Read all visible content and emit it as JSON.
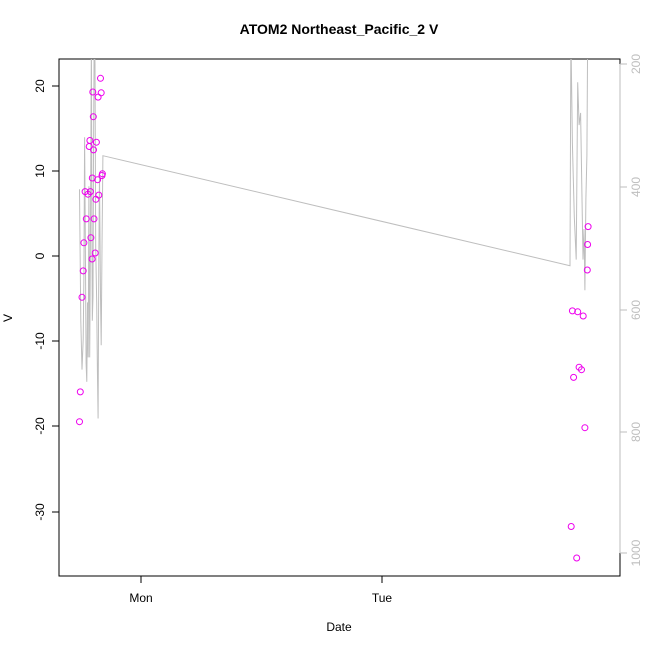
{
  "chart_data": {
    "type": "scatter",
    "title": "ATOM2 Northeast_Pacific_2 V",
    "xlabel": "Date",
    "ylabel": "V",
    "x_ticks": [
      "Mon",
      "Tue"
    ],
    "y_ticks": [
      "20",
      "10",
      "0",
      "-10",
      "-20",
      "-30"
    ],
    "y_right_ticks": [
      "200",
      "400",
      "600",
      "800",
      "1000"
    ],
    "ylim": [
      -37,
      23
    ],
    "y_right_lim": [
      1005,
      195
    ],
    "right_axis_reversed": true,
    "points_color": "#ee00ee",
    "line_color": "#bebebe",
    "axis_color_right": "#bebebe",
    "scatter_points": [
      {
        "x": -0.255,
        "y": -19.4
      },
      {
        "x": -0.252,
        "y": -15.9
      },
      {
        "x": -0.245,
        "y": -4.8
      },
      {
        "x": -0.24,
        "y": -1.7
      },
      {
        "x": -0.237,
        "y": 1.6
      },
      {
        "x": -0.232,
        "y": 7.6
      },
      {
        "x": -0.227,
        "y": 4.4
      },
      {
        "x": -0.22,
        "y": 7.3
      },
      {
        "x": -0.215,
        "y": 12.9
      },
      {
        "x": -0.212,
        "y": 13.6
      },
      {
        "x": -0.21,
        "y": 7.6
      },
      {
        "x": -0.208,
        "y": 2.2
      },
      {
        "x": -0.203,
        "y": -0.3
      },
      {
        "x": -0.202,
        "y": 9.2
      },
      {
        "x": -0.2,
        "y": 19.3
      },
      {
        "x": -0.198,
        "y": 16.4
      },
      {
        "x": -0.197,
        "y": 12.5
      },
      {
        "x": -0.195,
        "y": 4.4
      },
      {
        "x": -0.19,
        "y": 0.4
      },
      {
        "x": -0.187,
        "y": 6.7
      },
      {
        "x": -0.185,
        "y": 13.4
      },
      {
        "x": -0.18,
        "y": 9.0
      },
      {
        "x": -0.178,
        "y": 18.7
      },
      {
        "x": -0.175,
        "y": 7.2
      },
      {
        "x": -0.168,
        "y": 20.9
      },
      {
        "x": -0.165,
        "y": 19.2
      },
      {
        "x": -0.162,
        "y": 9.5
      },
      {
        "x": -0.16,
        "y": 9.7
      },
      {
        "x": 1.785,
        "y": -31.7
      },
      {
        "x": 1.79,
        "y": -6.4
      },
      {
        "x": 1.795,
        "y": -14.2
      },
      {
        "x": 1.808,
        "y": -35.4
      },
      {
        "x": 1.812,
        "y": -6.5
      },
      {
        "x": 1.818,
        "y": -13.0
      },
      {
        "x": 1.828,
        "y": -13.3
      },
      {
        "x": 1.835,
        "y": -7.0
      },
      {
        "x": 1.842,
        "y": -20.1
      },
      {
        "x": 1.852,
        "y": -1.6
      },
      {
        "x": 1.853,
        "y": 1.4
      },
      {
        "x": 1.855,
        "y": 3.5
      }
    ],
    "depth_line": [
      {
        "x": -0.255,
        "d": 405
      },
      {
        "x": -0.25,
        "d": 620
      },
      {
        "x": -0.245,
        "d": 700
      },
      {
        "x": -0.24,
        "d": 650
      },
      {
        "x": -0.237,
        "d": 550
      },
      {
        "x": -0.234,
        "d": 320
      },
      {
        "x": -0.231,
        "d": 480
      },
      {
        "x": -0.228,
        "d": 690
      },
      {
        "x": -0.225,
        "d": 720
      },
      {
        "x": -0.222,
        "d": 590
      },
      {
        "x": -0.219,
        "d": 680
      },
      {
        "x": -0.216,
        "d": 400
      },
      {
        "x": -0.213,
        "d": 680
      },
      {
        "x": -0.21,
        "d": 500
      },
      {
        "x": -0.206,
        "d": 150
      },
      {
        "x": -0.204,
        "d": 420
      },
      {
        "x": -0.202,
        "d": 620
      },
      {
        "x": -0.199,
        "d": 580
      },
      {
        "x": -0.197,
        "d": 350
      },
      {
        "x": -0.194,
        "d": 150
      },
      {
        "x": -0.191,
        "d": 200
      },
      {
        "x": -0.188,
        "d": 500
      },
      {
        "x": -0.184,
        "d": 590
      },
      {
        "x": -0.181,
        "d": 700
      },
      {
        "x": -0.178,
        "d": 780
      },
      {
        "x": -0.175,
        "d": 520
      },
      {
        "x": -0.172,
        "d": 380
      },
      {
        "x": -0.168,
        "d": 580
      },
      {
        "x": -0.165,
        "d": 660
      },
      {
        "x": -0.162,
        "d": 500
      },
      {
        "x": -0.158,
        "d": 350
      },
      {
        "x": 1.78,
        "d": 530
      },
      {
        "x": 1.784,
        "d": 150
      },
      {
        "x": 1.79,
        "d": 330
      },
      {
        "x": 1.798,
        "d": 450
      },
      {
        "x": 1.806,
        "d": 520
      },
      {
        "x": 1.812,
        "d": 230
      },
      {
        "x": 1.818,
        "d": 300
      },
      {
        "x": 1.824,
        "d": 280
      },
      {
        "x": 1.829,
        "d": 400
      },
      {
        "x": 1.834,
        "d": 520
      },
      {
        "x": 1.838,
        "d": 470
      },
      {
        "x": 1.842,
        "d": 570
      },
      {
        "x": 1.846,
        "d": 420
      },
      {
        "x": 1.85,
        "d": 350
      },
      {
        "x": 1.853,
        "d": 170
      }
    ]
  }
}
